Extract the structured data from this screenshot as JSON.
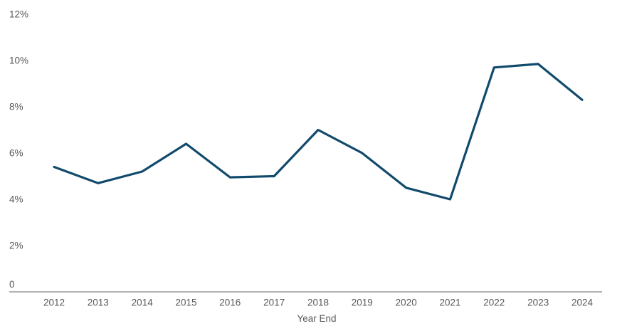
{
  "chart_data": {
    "type": "line",
    "title": "",
    "xlabel": "Year End",
    "ylabel": "",
    "categories": [
      "2012",
      "2013",
      "2014",
      "2015",
      "2016",
      "2017",
      "2018",
      "2019",
      "2020",
      "2021",
      "2022",
      "2023",
      "2024"
    ],
    "values": [
      5.4,
      4.7,
      5.2,
      6.4,
      4.95,
      5.0,
      7.0,
      6.0,
      4.5,
      4.0,
      9.7,
      9.85,
      8.3
    ],
    "ylim": [
      0,
      12
    ],
    "y_ticks": [
      {
        "value": 0,
        "label": "0"
      },
      {
        "value": 2,
        "label": "2%"
      },
      {
        "value": 4,
        "label": "4%"
      },
      {
        "value": 6,
        "label": "6%"
      },
      {
        "value": 8,
        "label": "8%"
      },
      {
        "value": 10,
        "label": "10%"
      },
      {
        "value": 12,
        "label": "12%"
      }
    ],
    "grid": false,
    "legend": "none",
    "colors": {
      "line": "#114a6c",
      "axis": "#b2b2b2",
      "labels": "#58595b"
    }
  }
}
